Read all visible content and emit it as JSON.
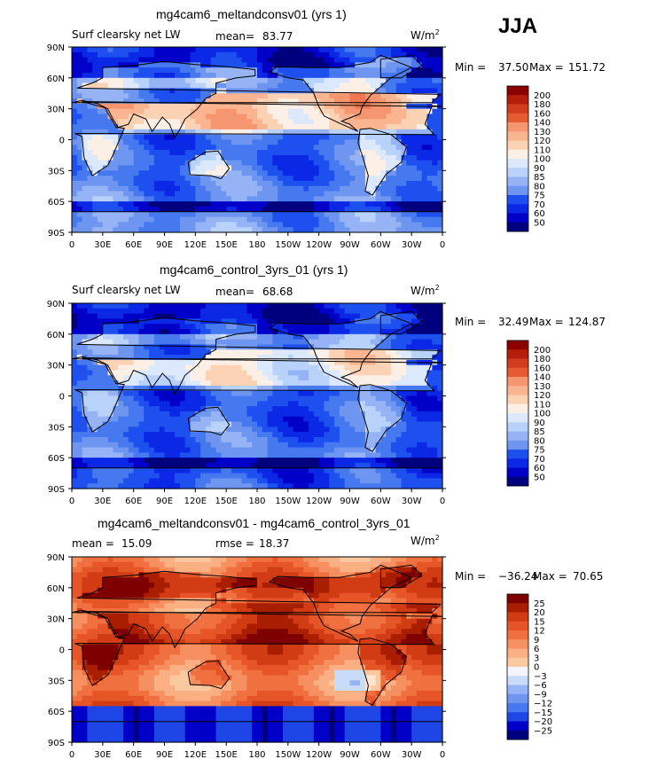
{
  "season": "JJA",
  "palette_full": [
    "#00007f",
    "#0000c8",
    "#0a28e6",
    "#1e50f0",
    "#4678f0",
    "#6e96f0",
    "#96b4f5",
    "#b9d2fa",
    "#dce8fc",
    "#fcf0e6",
    "#fcd2b4",
    "#fab490",
    "#f69670",
    "#f07850",
    "#e65a32",
    "#d23c1e",
    "#b41e0a",
    "#8c0000"
  ],
  "palette_diff": [
    "#00007f",
    "#0000c8",
    "#1e46e6",
    "#4678f0",
    "#6e96f0",
    "#96b4f5",
    "#c8dcfa",
    "#f5f5ff",
    "#fce6d2",
    "#fcc8a0",
    "#fab082",
    "#f69060",
    "#f07040",
    "#e65528",
    "#d23c14",
    "#aa1e00",
    "#7f0000"
  ],
  "lon_ticks": [
    "0",
    "30E",
    "60E",
    "90E",
    "120E",
    "150E",
    "180",
    "150W",
    "120W",
    "90W",
    "60W",
    "30W",
    "0"
  ],
  "lat_ticks": [
    "90N",
    "60N",
    "30N",
    "0",
    "30S",
    "60S",
    "90S"
  ],
  "panels": [
    {
      "name": "meltandconsv01",
      "title": "mg4cam6_meltandconsv01 (yrs 1)",
      "left_label": "Surf clearsky net LW",
      "stat_label": "mean=",
      "stat_value": "83.77",
      "units": "W/m",
      "units_sup": "2",
      "min_label": "Min =",
      "min_value": "37.50",
      "max_label": "Max =",
      "max_value": "151.72",
      "cb_labels": [
        "200",
        "180",
        "160",
        "140",
        "130",
        "120",
        "110",
        "100",
        "90",
        "85",
        "80",
        "75",
        "70",
        "60",
        "50"
      ],
      "kind": "full",
      "bias": 0.45
    },
    {
      "name": "control",
      "title": "mg4cam6_control_3yrs_01 (yrs 1)",
      "left_label": "Surf clearsky net LW",
      "stat_label": "mean=",
      "stat_value": "68.68",
      "units": "W/m",
      "units_sup": "2",
      "min_label": "Min =",
      "min_value": "32.49",
      "max_label": "Max =",
      "max_value": "124.87",
      "cb_labels": [
        "200",
        "180",
        "160",
        "140",
        "130",
        "120",
        "110",
        "100",
        "90",
        "85",
        "80",
        "75",
        "70",
        "60",
        "50"
      ],
      "kind": "full",
      "bias": 0.2
    },
    {
      "name": "difference",
      "title": "mg4cam6_meltandconsv01 - mg4cam6_control_3yrs_01",
      "left_label": "mean =",
      "left_value": "15.09",
      "stat_label": "rmse =",
      "stat_value": "18.37",
      "units": "W/m",
      "units_sup": "2",
      "min_label": "Min =",
      "min_value": "−36.24",
      "max_label": "Max =",
      "max_value": "70.65",
      "cb_labels": [
        "25",
        "20",
        "15",
        "12",
        "9",
        "6",
        "3",
        "0",
        "−3",
        "−6",
        "−9",
        "−12",
        "−15",
        "−20",
        "−25"
      ],
      "kind": "diff",
      "bias": 0.75
    }
  ]
}
